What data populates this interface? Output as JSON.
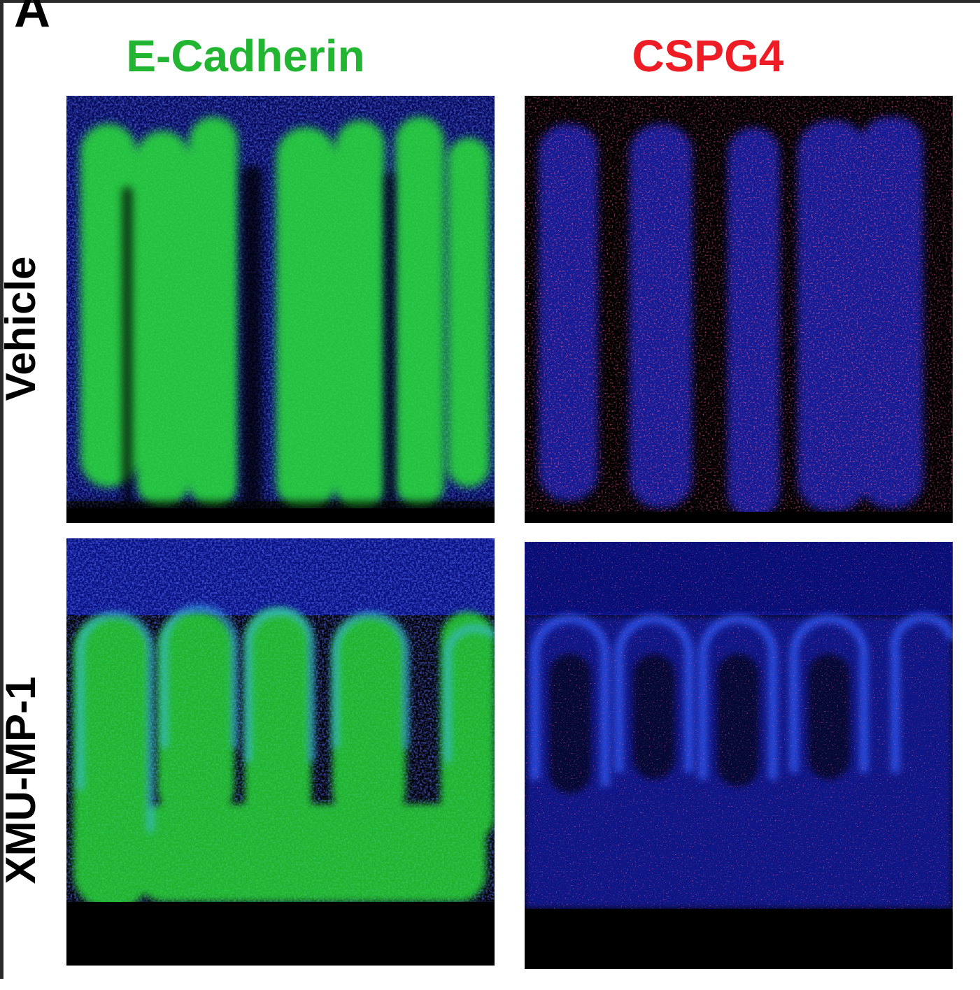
{
  "panel_letter": "A",
  "columns": [
    {
      "label": "E-Cadherin",
      "color": "#22b532"
    },
    {
      "label": "CSPG4",
      "color": "#ee1c24"
    }
  ],
  "rows": [
    {
      "label": "Vehicle"
    },
    {
      "label": "XMU-MP-1"
    }
  ],
  "colors": {
    "nuclei_blue": "#1a2ee0",
    "ecadherin_green": "#2fe03a",
    "cspg4_red": "#ff2040",
    "background": "#000000"
  }
}
